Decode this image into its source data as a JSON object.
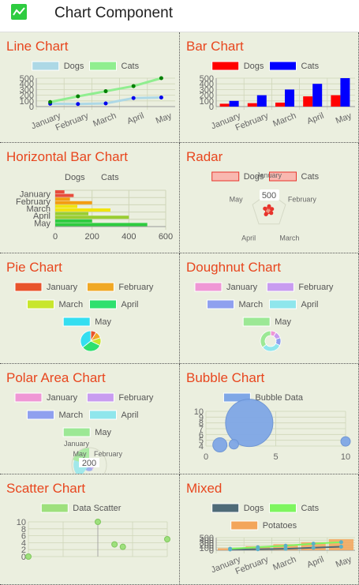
{
  "app": {
    "title": "Chart Component"
  },
  "colors": {
    "title": "#e8461e",
    "panel": "#ebefdf",
    "appIcon": "#2ecc40"
  },
  "cards": [
    {
      "id": "line",
      "title": "Line Chart",
      "chart_data": {
        "type": "line",
        "categories": [
          "January",
          "February",
          "March",
          "April",
          "May"
        ],
        "ylim": [
          0,
          500
        ],
        "yticks": [
          0,
          100,
          200,
          300,
          400,
          500
        ],
        "series": [
          {
            "name": "Dogs",
            "color": "#add8e6",
            "values": [
              50,
              45,
              55,
              150,
              160
            ]
          },
          {
            "name": "Cats",
            "color": "#90ee90",
            "values": [
              80,
              180,
              270,
              360,
              500
            ]
          }
        ]
      }
    },
    {
      "id": "bar",
      "title": "Bar Chart",
      "chart_data": {
        "type": "bar",
        "categories": [
          "January",
          "February",
          "March",
          "April",
          "May"
        ],
        "ylim": [
          0,
          500
        ],
        "yticks": [
          0,
          100,
          200,
          300,
          400,
          500
        ],
        "series": [
          {
            "name": "Dogs",
            "color": "#ff0000",
            "values": [
              50,
              60,
              70,
              180,
              200
            ]
          },
          {
            "name": "Cats",
            "color": "#0000ff",
            "values": [
              100,
              200,
              300,
              400,
              500
            ]
          }
        ]
      }
    },
    {
      "id": "hbar",
      "title": "Horizontal Bar Chart",
      "chart_data": {
        "type": "bar",
        "orientation": "horizontal",
        "categories": [
          "January",
          "February",
          "March",
          "April",
          "May"
        ],
        "xlim": [
          0,
          600
        ],
        "xticks": [
          0,
          200,
          400,
          600
        ],
        "legend": [
          "Dogs",
          "Cats"
        ],
        "series": [
          {
            "name": "Dogs",
            "colors": [
              "#e84c3d",
              "#f39c12",
              "#f1e40f",
              "#9acd32",
              "#2ecc40"
            ],
            "values": [
              50,
              80,
              120,
              180,
              200
            ]
          },
          {
            "name": "Cats",
            "colors": [
              "#e84c3d",
              "#f39c12",
              "#f1e40f",
              "#9acd32",
              "#2ecc40"
            ],
            "values": [
              100,
              200,
              300,
              400,
              500
            ]
          }
        ]
      }
    },
    {
      "id": "radar",
      "title": "Radar",
      "chart_data": {
        "type": "radar",
        "categories": [
          "January",
          "February",
          "March",
          "April",
          "May"
        ],
        "rmax": 500,
        "tick": "500",
        "series": [
          {
            "name": "Dogs",
            "color": "#e8342c",
            "values": [
              80,
              90,
              120,
              150,
              140
            ]
          },
          {
            "name": "Cats",
            "color": "#e8342c",
            "values": [
              120,
              100,
              110,
              170,
              130
            ]
          }
        ]
      }
    },
    {
      "id": "pie",
      "title": "Pie Chart",
      "chart_data": {
        "type": "pie",
        "categories": [
          "January",
          "February",
          "March",
          "April",
          "May"
        ],
        "colors": [
          "#e8542c",
          "#f0a825",
          "#c8e62d",
          "#2ee06e",
          "#34def0"
        ],
        "values": [
          50,
          60,
          70,
          180,
          200
        ]
      }
    },
    {
      "id": "doughnut",
      "title": "Doughnut Chart",
      "chart_data": {
        "type": "doughnut",
        "categories": [
          "January",
          "February",
          "March",
          "April",
          "May"
        ],
        "colors": [
          "#ef97d5",
          "#c89cf0",
          "#8fa0ef",
          "#8fe6ec",
          "#9ce895"
        ],
        "values": [
          50,
          60,
          70,
          180,
          200
        ]
      }
    },
    {
      "id": "polar",
      "title": "Polar Area Chart",
      "chart_data": {
        "type": "polarArea",
        "categories": [
          "January",
          "February",
          "March",
          "April",
          "May"
        ],
        "colors": [
          "#ef97d5",
          "#c89cf0",
          "#8fa0ef",
          "#8fe6ec",
          "#9ce895"
        ],
        "values": [
          50,
          60,
          70,
          180,
          200
        ],
        "tick": "200"
      }
    },
    {
      "id": "bubble",
      "title": "Bubble Chart",
      "chart_data": {
        "type": "bubble",
        "xlim": [
          0,
          10
        ],
        "ylim": [
          4,
          10
        ],
        "xticks": [
          0,
          5,
          10
        ],
        "yticks": [
          4,
          5,
          6,
          7,
          8,
          9,
          10
        ],
        "series": [
          {
            "name": "Bubble Data",
            "color": "#7fa7e6",
            "points": [
              {
                "x": 3.1,
                "y": 8,
                "r": 30
              },
              {
                "x": 1,
                "y": 4.2,
                "r": 9
              },
              {
                "x": 2,
                "y": 4.3,
                "r": 6
              },
              {
                "x": 10,
                "y": 4.8,
                "r": 6
              }
            ]
          }
        ]
      }
    },
    {
      "id": "scatter",
      "title": "Scatter Chart",
      "chart_data": {
        "type": "scatter",
        "xlim": [
          0,
          10
        ],
        "ylim": [
          0,
          10
        ],
        "yticks": [
          0,
          2,
          4,
          6,
          8,
          10
        ],
        "series": [
          {
            "name": "Data Scatter",
            "color": "#9ee07d",
            "points": [
              {
                "x": 0,
                "y": 0
              },
              {
                "x": 5,
                "y": 10
              },
              {
                "x": 6.2,
                "y": 3.5
              },
              {
                "x": 6.8,
                "y": 2.8
              },
              {
                "x": 10,
                "y": 5
              }
            ]
          }
        ]
      }
    },
    {
      "id": "mixed",
      "title": "Mixed",
      "chart_data": {
        "type": "mixed",
        "categories": [
          "January",
          "February",
          "March",
          "April",
          "May"
        ],
        "ylim": [
          0,
          500
        ],
        "yticks": [
          0,
          100,
          200,
          300,
          400,
          500
        ],
        "series": [
          {
            "name": "Dogs",
            "color": "#4f6b78",
            "kind": "line",
            "values": [
              30,
              40,
              60,
              100,
              140
            ]
          },
          {
            "name": "Cats",
            "color": "#7ef55f",
            "kind": "line",
            "values": [
              60,
              120,
              180,
              260,
              320
            ]
          },
          {
            "name": "Potatoes",
            "color": "#f3a55b",
            "kind": "bar",
            "values": [
              80,
              160,
              240,
              320,
              440
            ]
          }
        ]
      }
    }
  ]
}
